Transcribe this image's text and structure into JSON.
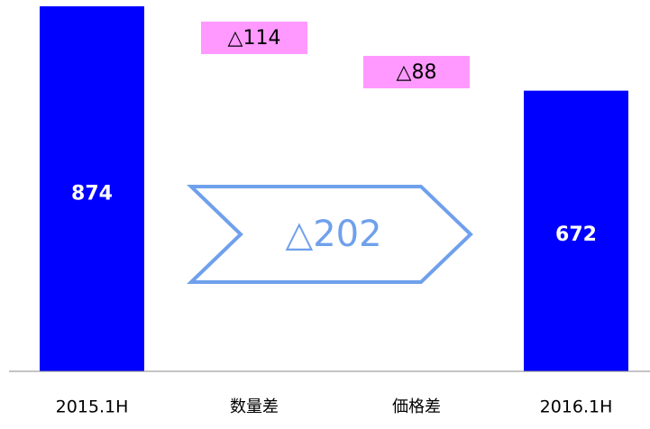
{
  "chart_data": {
    "type": "bar",
    "subtype": "waterfall",
    "categories": [
      "2015.1H",
      "数量差",
      "価格差",
      "2016.1H"
    ],
    "values": [
      874,
      -114,
      -88,
      672
    ],
    "data_labels": [
      "874",
      "△114",
      "△88",
      "672"
    ],
    "total_change": -202,
    "total_change_label": "△202",
    "title": "",
    "xlabel": "",
    "ylabel": "",
    "ylim": [
      0,
      874
    ],
    "grid": false,
    "legend": "none"
  },
  "colors": {
    "total_bar": "#0000ff",
    "delta_box": "#ff99ff",
    "arrow_stroke": "#6fa0ec",
    "arrow_text": "#6fa0ec",
    "bar_label": "#ffffff",
    "text": "#000000",
    "axis": "#888888"
  }
}
